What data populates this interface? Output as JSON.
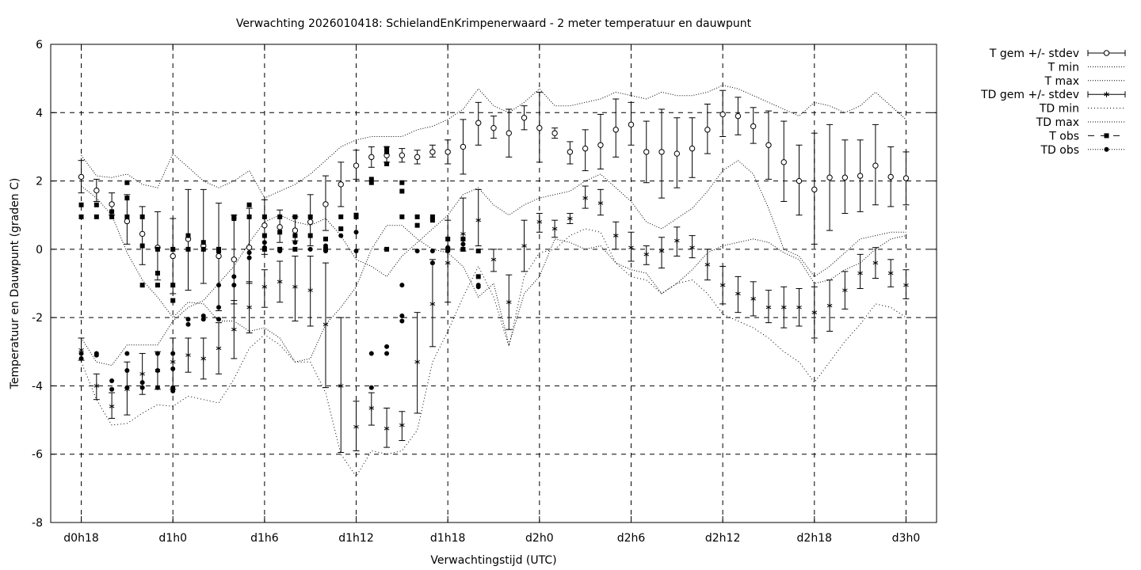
{
  "chart_data": {
    "type": "line",
    "title": "Verwachting 2026010418: SchielandEnKrimpenerwaard - 2 meter temperatuur en dauwpunt",
    "xlabel": "Verwachtingstijd (UTC)",
    "ylabel": "Temperatuur en Dauwpunt (graden C)",
    "x_ticks": [
      {
        "x": 18,
        "label": "d0h18"
      },
      {
        "x": 24,
        "label": "d1h0"
      },
      {
        "x": 30,
        "label": "d1h6"
      },
      {
        "x": 36,
        "label": "d1h12"
      },
      {
        "x": 42,
        "label": "d1h18"
      },
      {
        "x": 48,
        "label": "d2h0"
      },
      {
        "x": 54,
        "label": "d2h6"
      },
      {
        "x": 60,
        "label": "d2h12"
      },
      {
        "x": 66,
        "label": "d2h18"
      },
      {
        "x": 72,
        "label": "d3h0"
      }
    ],
    "y_ticks": [
      "6",
      "4",
      "2",
      "0",
      "-2",
      "-4",
      "-6",
      "-8"
    ],
    "xlim": [
      16,
      74
    ],
    "ylim": [
      -8,
      6
    ],
    "grid": true,
    "legend_position": "outside right, top",
    "x": [
      18,
      19,
      20,
      21,
      22,
      23,
      24,
      25,
      26,
      27,
      28,
      29,
      30,
      31,
      32,
      33,
      34,
      35,
      36,
      37,
      38,
      39,
      40,
      41,
      42,
      43,
      44,
      45,
      46,
      47,
      48,
      49,
      50,
      51,
      52,
      53,
      54,
      55,
      56,
      57,
      58,
      59,
      60,
      61,
      62,
      63,
      64,
      65,
      66,
      67,
      68,
      69,
      70,
      71,
      72
    ],
    "series": [
      {
        "name": "T gem +/- stdev",
        "mean": [
          2.12,
          1.72,
          1.32,
          0.82,
          0.45,
          0.05,
          -0.2,
          0.3,
          0.1,
          -0.2,
          -0.3,
          0.05,
          0.7,
          0.65,
          0.55,
          0.8,
          1.32,
          1.9,
          2.45,
          2.7,
          2.75,
          2.75,
          2.7,
          2.85,
          2.85,
          3.0,
          3.7,
          3.55,
          3.4,
          3.85,
          3.55,
          3.4,
          2.85,
          2.95,
          3.05,
          3.5,
          3.65,
          2.85,
          2.85,
          2.8,
          2.95,
          3.5,
          3.95,
          3.9,
          3.6,
          3.05,
          2.55,
          2.0,
          1.75,
          2.1,
          2.1,
          2.15,
          2.45,
          2.12,
          2.08
        ],
        "lower": [
          1.65,
          1.4,
          1.0,
          0.15,
          -0.45,
          -0.9,
          -1.3,
          -1.2,
          -1.0,
          -1.8,
          -1.6,
          -1.0,
          -0.15,
          0.2,
          0.25,
          0.1,
          0.55,
          1.25,
          2.05,
          2.4,
          2.55,
          2.55,
          2.5,
          2.7,
          2.5,
          2.2,
          3.05,
          3.25,
          2.7,
          3.5,
          2.55,
          3.25,
          2.5,
          2.3,
          2.35,
          2.7,
          3.05,
          1.95,
          1.5,
          1.8,
          2.1,
          2.8,
          3.3,
          3.35,
          3.1,
          2.05,
          1.4,
          1.0,
          0.15,
          0.55,
          1.05,
          1.1,
          1.3,
          1.25,
          1.3
        ],
        "upper": [
          2.6,
          2.05,
          1.65,
          1.6,
          1.25,
          1.1,
          0.9,
          1.75,
          1.75,
          1.35,
          1.0,
          1.2,
          1.45,
          1.15,
          0.95,
          1.6,
          2.15,
          2.55,
          2.9,
          3.0,
          3.0,
          2.95,
          2.9,
          3.05,
          3.2,
          3.8,
          4.3,
          3.9,
          4.1,
          4.2,
          4.6,
          3.55,
          3.15,
          3.5,
          3.95,
          4.4,
          4.3,
          3.75,
          4.1,
          3.85,
          3.85,
          4.25,
          4.65,
          4.45,
          4.15,
          4.05,
          3.75,
          3.05,
          3.4,
          3.65,
          3.2,
          3.2,
          3.65,
          3.0,
          2.85
        ]
      },
      {
        "name": "T min",
        "values": [
          1.85,
          1.5,
          1.0,
          -0.1,
          -0.9,
          -1.4,
          -2.0,
          -1.55,
          -1.6,
          -2.1,
          -2.1,
          -2.4,
          -2.3,
          -2.6,
          -3.3,
          -3.2,
          -2.2,
          -1.7,
          -1.1,
          0.0,
          0.7,
          0.7,
          0.3,
          0.0,
          -0.1,
          -0.5,
          -1.4,
          -1.0,
          -2.8,
          -1.3,
          -0.8,
          0.3,
          0.2,
          0.0,
          0.1,
          -0.4,
          -0.6,
          -0.7,
          -1.3,
          -1.0,
          -0.6,
          -0.1,
          0.1,
          0.2,
          0.3,
          0.2,
          -0.1,
          -0.3,
          -1.0,
          -0.9,
          -0.6,
          -0.4,
          0.0,
          0.3,
          0.4
        ]
      },
      {
        "name": "T max",
        "values": [
          2.75,
          2.15,
          2.1,
          2.2,
          1.9,
          1.8,
          2.8,
          2.4,
          2.0,
          1.8,
          2.0,
          2.3,
          1.5,
          1.7,
          1.9,
          2.2,
          2.6,
          3.0,
          3.2,
          3.3,
          3.3,
          3.3,
          3.5,
          3.6,
          3.8,
          4.1,
          4.7,
          4.2,
          4.0,
          4.3,
          4.7,
          4.2,
          4.2,
          4.3,
          4.4,
          4.6,
          4.5,
          4.4,
          4.6,
          4.5,
          4.5,
          4.6,
          4.8,
          4.7,
          4.5,
          4.3,
          4.1,
          3.9,
          4.3,
          4.2,
          4.0,
          4.2,
          4.6,
          4.2,
          3.8
        ]
      },
      {
        "name": "TD gem +/- stdev",
        "mean": [
          -2.95,
          -4.0,
          -4.6,
          -4.1,
          -3.65,
          -3.55,
          -3.3,
          -3.1,
          -3.2,
          -2.9,
          -2.35,
          -1.7,
          -1.1,
          -0.95,
          -1.1,
          -1.2,
          -2.2,
          -4.0,
          -5.2,
          -4.65,
          -5.25,
          -5.15,
          -3.3,
          -1.6,
          -0.4,
          0.45,
          0.85,
          -0.3,
          -1.55,
          0.1,
          0.8,
          0.6,
          0.9,
          1.5,
          1.35,
          0.4,
          0.05,
          -0.15,
          -0.05,
          0.25,
          0.05,
          -0.45,
          -1.05,
          -1.3,
          -1.45,
          -1.7,
          -1.7,
          -1.7,
          -1.85,
          -1.65,
          -1.2,
          -0.7,
          -0.4,
          -0.7,
          -1.05
        ],
        "lower": [
          -3.25,
          -4.4,
          -4.95,
          -4.85,
          -4.25,
          -4.1,
          -4.1,
          -3.6,
          -3.8,
          -3.65,
          -3.2,
          -2.45,
          -1.7,
          -1.55,
          -2.1,
          -2.25,
          -4.05,
          -5.95,
          -5.9,
          -5.15,
          -5.8,
          -5.6,
          -4.8,
          -2.85,
          -1.55,
          -0.05,
          0.1,
          -0.65,
          -2.35,
          -0.65,
          0.5,
          0.35,
          0.75,
          1.2,
          1.0,
          0.0,
          -0.35,
          -0.45,
          -0.55,
          -0.2,
          -0.25,
          -0.9,
          -1.6,
          -1.85,
          -1.95,
          -2.15,
          -2.3,
          -2.25,
          -2.6,
          -2.4,
          -1.75,
          -1.15,
          -0.85,
          -1.1,
          -1.45
        ],
        "upper": [
          -2.6,
          -3.65,
          -4.2,
          -3.3,
          -3.05,
          -3.0,
          -2.6,
          -2.6,
          -2.6,
          -2.15,
          -1.5,
          -0.95,
          -0.6,
          -0.35,
          -0.2,
          -0.2,
          -0.4,
          -2.0,
          -4.45,
          -4.2,
          -4.65,
          -4.75,
          -1.85,
          -0.3,
          0.85,
          1.5,
          1.75,
          0.0,
          -0.75,
          0.85,
          1.05,
          0.85,
          1.05,
          1.85,
          1.75,
          0.8,
          0.5,
          0.1,
          0.35,
          0.65,
          0.4,
          0.0,
          -0.5,
          -0.8,
          -0.95,
          -1.2,
          -1.1,
          -1.15,
          -1.1,
          -0.9,
          -0.65,
          -0.15,
          0.05,
          -0.3,
          -0.6
        ]
      },
      {
        "name": "TD min",
        "values": [
          -3.3,
          -4.4,
          -5.15,
          -5.1,
          -4.8,
          -4.55,
          -4.6,
          -4.3,
          -4.4,
          -4.5,
          -3.8,
          -2.9,
          -2.5,
          -2.8,
          -3.3,
          -3.3,
          -4.2,
          -6.0,
          -6.65,
          -5.9,
          -6.0,
          -5.9,
          -5.3,
          -3.3,
          -2.4,
          -1.4,
          -0.5,
          -1.4,
          -2.85,
          -0.8,
          -0.1,
          0.0,
          0.4,
          0.6,
          0.5,
          -0.4,
          -0.8,
          -0.9,
          -1.3,
          -1.0,
          -0.9,
          -1.3,
          -1.9,
          -2.1,
          -2.3,
          -2.6,
          -3.0,
          -3.3,
          -3.9,
          -3.3,
          -2.7,
          -2.2,
          -1.6,
          -1.7,
          -2.0
        ]
      },
      {
        "name": "TD max",
        "values": [
          -2.6,
          -3.3,
          -3.4,
          -2.8,
          -2.8,
          -2.8,
          -2.1,
          -1.7,
          -1.5,
          -1.0,
          -0.5,
          0.2,
          0.8,
          1.0,
          0.8,
          0.7,
          0.9,
          0.4,
          -0.3,
          -0.5,
          -0.8,
          -0.2,
          0.2,
          0.6,
          1.0,
          1.6,
          1.8,
          1.3,
          1.0,
          1.3,
          1.5,
          1.6,
          1.7,
          2.0,
          2.2,
          1.8,
          1.4,
          0.8,
          0.6,
          0.9,
          1.2,
          1.7,
          2.3,
          2.6,
          2.2,
          1.2,
          0.0,
          -0.2,
          -0.8,
          -0.5,
          -0.1,
          0.3,
          0.4,
          0.5,
          0.5
        ]
      },
      {
        "name": "T obs",
        "points": [
          [
            18,
            1.3
          ],
          [
            18,
            0.95
          ],
          [
            19,
            1.3
          ],
          [
            19,
            0.95
          ],
          [
            20,
            1.1
          ],
          [
            20,
            0.95
          ],
          [
            21,
            1.95
          ],
          [
            21,
            1.5
          ],
          [
            21,
            0.95
          ],
          [
            22,
            0.95
          ],
          [
            22,
            0.1
          ],
          [
            22,
            -1.05
          ],
          [
            23,
            0.0
          ],
          [
            23,
            -0.7
          ],
          [
            23,
            -1.05
          ],
          [
            24,
            0.0
          ],
          [
            24,
            -1.05
          ],
          [
            24,
            -1.5
          ],
          [
            25,
            0.4
          ],
          [
            25,
            0.0
          ],
          [
            26,
            0.2
          ],
          [
            26,
            0.0
          ],
          [
            27,
            0.0
          ],
          [
            27,
            -0.05
          ],
          [
            28,
            0.95
          ],
          [
            28,
            0.9
          ],
          [
            29,
            1.3
          ],
          [
            29,
            0.95
          ],
          [
            30,
            0.95
          ],
          [
            30,
            0.4
          ],
          [
            30,
            0.0
          ],
          [
            31,
            0.95
          ],
          [
            31,
            0.5
          ],
          [
            31,
            0.0
          ],
          [
            32,
            0.95
          ],
          [
            32,
            0.4
          ],
          [
            32,
            0.0
          ],
          [
            33,
            0.95
          ],
          [
            33,
            0.4
          ],
          [
            34,
            0.3
          ],
          [
            34,
            0.0
          ],
          [
            35,
            0.95
          ],
          [
            35,
            0.6
          ],
          [
            36,
            1.0
          ],
          [
            36,
            0.95
          ],
          [
            37,
            2.05
          ],
          [
            37,
            1.95
          ],
          [
            38,
            2.95
          ],
          [
            38,
            2.85
          ],
          [
            38,
            2.5
          ],
          [
            38,
            0.0
          ],
          [
            39,
            1.95
          ],
          [
            39,
            1.7
          ],
          [
            39,
            0.95
          ],
          [
            40,
            0.95
          ],
          [
            40,
            0.7
          ],
          [
            41,
            0.95
          ],
          [
            41,
            0.85
          ],
          [
            42,
            0.3
          ],
          [
            42,
            0.0
          ],
          [
            43,
            0.3
          ],
          [
            43,
            0.0
          ],
          [
            44,
            -0.8
          ],
          [
            44,
            -0.05
          ]
        ]
      },
      {
        "name": "TD obs",
        "points": [
          [
            18,
            -3.05
          ],
          [
            18,
            -3.2
          ],
          [
            19,
            -3.05
          ],
          [
            19,
            -3.1
          ],
          [
            20,
            -3.85
          ],
          [
            20,
            -4.1
          ],
          [
            21,
            -3.05
          ],
          [
            21,
            -3.55
          ],
          [
            21,
            -4.05
          ],
          [
            22,
            -3.9
          ],
          [
            22,
            -4.05
          ],
          [
            23,
            -3.05
          ],
          [
            23,
            -3.55
          ],
          [
            23,
            -4.05
          ],
          [
            24,
            -3.05
          ],
          [
            24,
            -3.5
          ],
          [
            24,
            -4.05
          ],
          [
            24,
            -4.15
          ],
          [
            25,
            -2.05
          ],
          [
            25,
            -2.2
          ],
          [
            26,
            -1.95
          ],
          [
            26,
            -2.05
          ],
          [
            27,
            -1.05
          ],
          [
            27,
            -1.7
          ],
          [
            27,
            -2.05
          ],
          [
            28,
            -0.8
          ],
          [
            28,
            -1.05
          ],
          [
            29,
            -0.1
          ],
          [
            29,
            -0.25
          ],
          [
            30,
            0.05
          ],
          [
            30,
            0.2
          ],
          [
            31,
            0.0
          ],
          [
            31,
            -0.05
          ],
          [
            32,
            0.4
          ],
          [
            32,
            0.2
          ],
          [
            33,
            0.0
          ],
          [
            34,
            0.1
          ],
          [
            34,
            -0.05
          ],
          [
            35,
            0.4
          ],
          [
            36,
            0.5
          ],
          [
            36,
            -0.05
          ],
          [
            37,
            -3.05
          ],
          [
            37,
            -4.05
          ],
          [
            38,
            -2.85
          ],
          [
            38,
            -3.05
          ],
          [
            39,
            -1.05
          ],
          [
            39,
            -1.95
          ],
          [
            39,
            -2.1
          ],
          [
            40,
            -0.05
          ],
          [
            41,
            -0.05
          ],
          [
            41,
            -0.4
          ],
          [
            42,
            0.05
          ],
          [
            42,
            -0.05
          ],
          [
            43,
            0.15
          ],
          [
            43,
            0.0
          ],
          [
            44,
            -1.05
          ],
          [
            44,
            -1.1
          ]
        ]
      }
    ]
  }
}
